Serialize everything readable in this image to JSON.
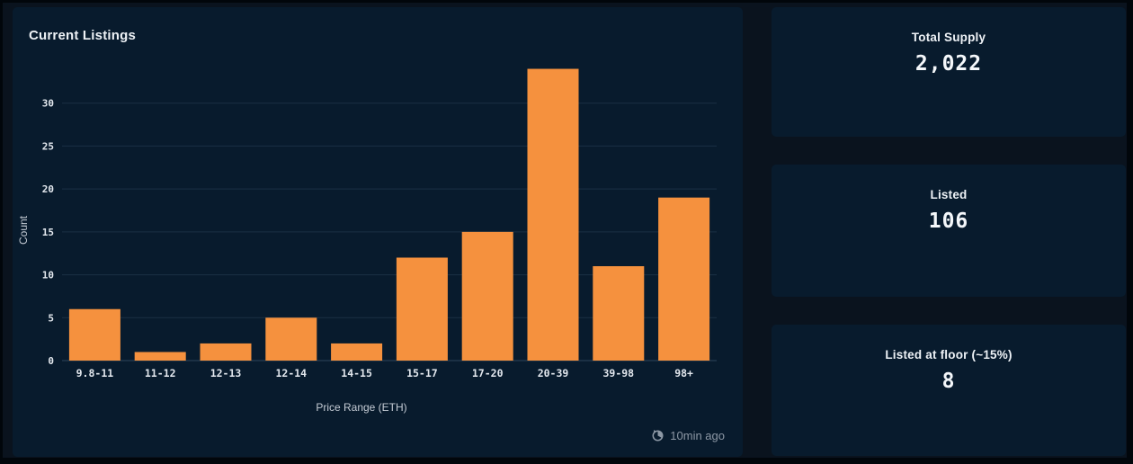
{
  "chart_data": {
    "type": "bar",
    "title": "Current Listings",
    "categories": [
      "9.8-11",
      "11-12",
      "12-13",
      "12-14",
      "14-15",
      "15-17",
      "17-20",
      "20-39",
      "39-98",
      "98+"
    ],
    "values": [
      6,
      1,
      2,
      5,
      2,
      12,
      15,
      34,
      11,
      19
    ],
    "xlabel": "Price Range (ETH)",
    "ylabel": "Count",
    "ylim": [
      0,
      35
    ],
    "yticks": [
      0,
      5,
      10,
      15,
      20,
      25,
      30
    ],
    "grid": true,
    "legend": false,
    "bar_color": "#f5913e"
  },
  "chart_footer": {
    "updated": "10min ago",
    "icon": "history-clock-icon"
  },
  "stat_cards": [
    {
      "label": "Total Supply",
      "value": "2,022"
    },
    {
      "label": "Listed",
      "value": "106"
    },
    {
      "label": "Listed at floor (~15%)",
      "value": "8"
    }
  ],
  "colors": {
    "accent_orange": "#f5913e",
    "card_background": "#081b2d",
    "page_background": "#0a131e",
    "grid_line": "rgba(126,160,194,0.16)",
    "baseline": "rgba(126,160,194,0.32)",
    "muted_text": "#8d98a5"
  }
}
